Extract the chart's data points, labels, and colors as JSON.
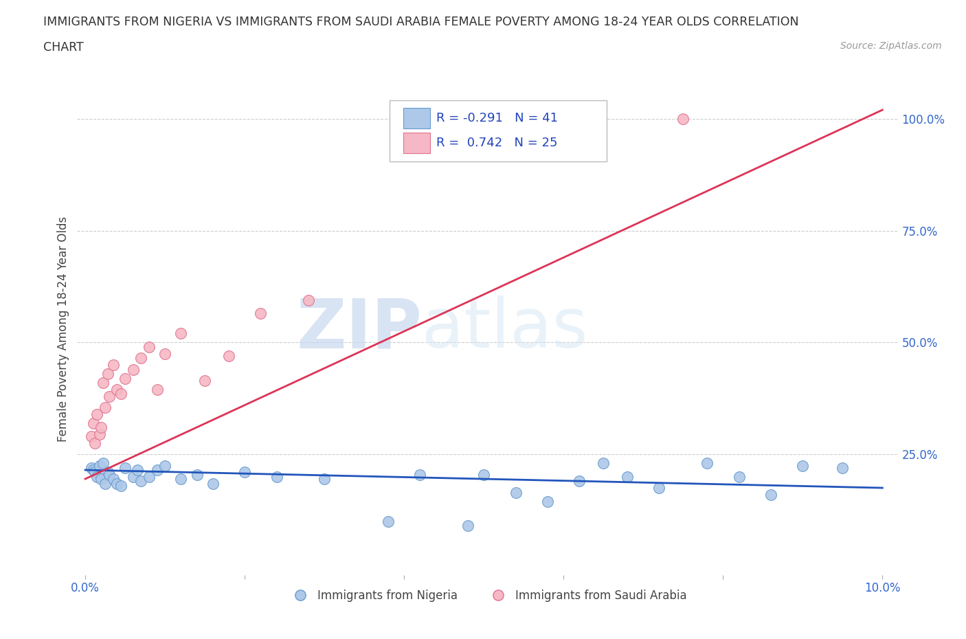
{
  "title_line1": "IMMIGRANTS FROM NIGERIA VS IMMIGRANTS FROM SAUDI ARABIA FEMALE POVERTY AMONG 18-24 YEAR OLDS CORRELATION",
  "title_line2": "CHART",
  "source": "Source: ZipAtlas.com",
  "ylabel": "Female Poverty Among 18-24 Year Olds",
  "xlim": [
    -0.001,
    0.102
  ],
  "ylim": [
    -0.02,
    1.08
  ],
  "xtick_positions": [
    0.0,
    0.02,
    0.04,
    0.06,
    0.08,
    0.1
  ],
  "xticklabels": [
    "0.0%",
    "",
    "",
    "",
    "",
    "10.0%"
  ],
  "yticks_right": [
    0.25,
    0.5,
    0.75,
    1.0
  ],
  "ytick_right_labels": [
    "25.0%",
    "50.0%",
    "75.0%",
    "100.0%"
  ],
  "nigeria_color": "#adc8e8",
  "nigeria_edge_color": "#6699cc",
  "saudi_color": "#f5b8c4",
  "saudi_edge_color": "#e07090",
  "nigeria_line_color": "#2255bb",
  "saudi_line_color": "#dd3355",
  "nigeria_R": -0.291,
  "nigeria_N": 41,
  "saudi_R": 0.742,
  "saudi_N": 25,
  "watermark_zip": "ZIP",
  "watermark_atlas": "atlas",
  "background_color": "#ffffff",
  "grid_color": "#cccccc",
  "nigeria_label": "Immigrants from Nigeria",
  "saudi_label": "Immigrants from Saudi Arabia",
  "nigeria_x": [
    0.0008,
    0.001,
    0.0012,
    0.0015,
    0.0018,
    0.002,
    0.0022,
    0.0025,
    0.0028,
    0.003,
    0.0035,
    0.004,
    0.0045,
    0.005,
    0.006,
    0.0065,
    0.007,
    0.008,
    0.009,
    0.01,
    0.012,
    0.014,
    0.016,
    0.02,
    0.024,
    0.03,
    0.038,
    0.042,
    0.048,
    0.05,
    0.054,
    0.058,
    0.062,
    0.065,
    0.068,
    0.072,
    0.078,
    0.082,
    0.086,
    0.09,
    0.095
  ],
  "nigeria_y": [
    0.22,
    0.215,
    0.21,
    0.2,
    0.225,
    0.195,
    0.23,
    0.185,
    0.21,
    0.205,
    0.195,
    0.185,
    0.18,
    0.22,
    0.2,
    0.215,
    0.19,
    0.2,
    0.215,
    0.225,
    0.195,
    0.205,
    0.185,
    0.21,
    0.2,
    0.195,
    0.1,
    0.205,
    0.09,
    0.205,
    0.165,
    0.145,
    0.19,
    0.23,
    0.2,
    0.175,
    0.23,
    0.2,
    0.16,
    0.225,
    0.22
  ],
  "saudi_x": [
    0.0008,
    0.001,
    0.0012,
    0.0015,
    0.0018,
    0.002,
    0.0022,
    0.0025,
    0.0028,
    0.003,
    0.0035,
    0.004,
    0.0045,
    0.005,
    0.006,
    0.007,
    0.008,
    0.009,
    0.01,
    0.012,
    0.015,
    0.018,
    0.022,
    0.028,
    0.075
  ],
  "saudi_y": [
    0.29,
    0.32,
    0.275,
    0.34,
    0.295,
    0.31,
    0.41,
    0.355,
    0.43,
    0.38,
    0.45,
    0.395,
    0.385,
    0.42,
    0.44,
    0.465,
    0.49,
    0.395,
    0.475,
    0.52,
    0.415,
    0.47,
    0.565,
    0.595,
    1.0
  ],
  "ng_line_x0": 0.0,
  "ng_line_x1": 0.1,
  "ng_line_y0": 0.215,
  "ng_line_y1": 0.175,
  "sa_line_x0": 0.0,
  "sa_line_x1": 0.1,
  "sa_line_y0": 0.195,
  "sa_line_y1": 1.02
}
